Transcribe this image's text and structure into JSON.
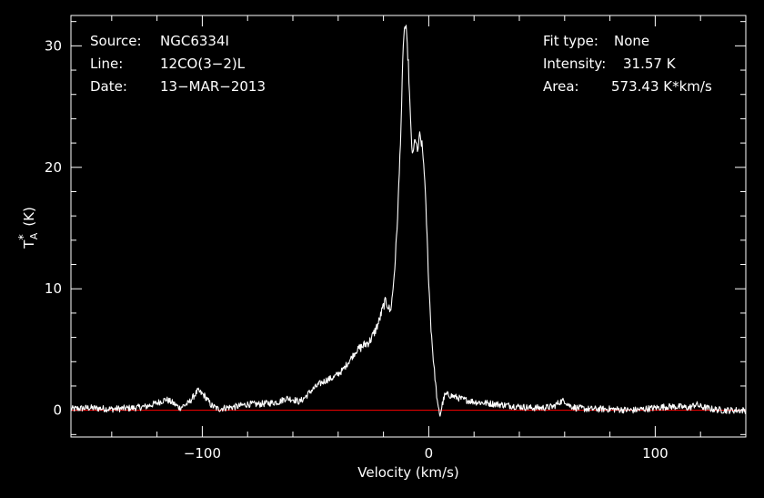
{
  "header": {
    "source_label": "Source:",
    "source_value": "NGC6334I",
    "line_label": "Line:",
    "line_value": "12CO(3−2)L",
    "date_label": "Date:",
    "date_value": "13−MAR−2013",
    "fit_label": "Fit type:",
    "fit_value": "None",
    "intensity_label": "Intensity:",
    "intensity_value": "31.57 K",
    "area_label": "Area:",
    "area_value": "573.43 K*km/s"
  },
  "colors": {
    "background": "#000000",
    "spectrum": "#ffffff",
    "baseline": "#ff0000",
    "axes": "#ffffff"
  },
  "chart_data": {
    "type": "line",
    "title": "",
    "xlabel": "Velocity (km/s)",
    "ylabel": "T*A (K)",
    "ylabel_parts": {
      "main": "T",
      "sup": "*",
      "sub": "A",
      "unit": "(K)"
    },
    "xlim": [
      -158,
      140
    ],
    "ylim": [
      -2.2,
      32.5
    ],
    "xticks": [
      -100,
      0,
      100
    ],
    "xtick_labels": [
      "−100",
      "0",
      "100"
    ],
    "yticks": [
      0,
      10,
      20,
      30
    ],
    "ytick_labels": [
      "0",
      "10",
      "20",
      "30"
    ],
    "grid": false,
    "legend": "none",
    "baseline_y": 0,
    "series": [
      {
        "x": [
          -158,
          -150,
          -140,
          -130,
          -125,
          -120,
          -116,
          -113,
          -110,
          -106,
          -102,
          -99,
          -96,
          -93,
          -90,
          -85,
          -80,
          -75,
          -70,
          -66,
          -63,
          -60,
          -57,
          -55,
          -52,
          -48,
          -45,
          -42,
          -38,
          -35,
          -32,
          -29,
          -26,
          -24,
          -22,
          -20,
          -19,
          -18,
          -17,
          -16,
          -15,
          -14,
          -13,
          -12,
          -11.5,
          -11,
          -10.5,
          -10,
          -9,
          -8,
          -7.5,
          -7,
          -6,
          -5,
          -4,
          -3,
          -2,
          -1,
          0,
          1,
          2,
          3,
          4,
          5,
          6,
          7,
          8,
          10,
          15,
          20,
          30,
          40,
          45,
          50,
          55,
          58,
          60,
          62,
          65,
          70,
          80,
          90,
          100,
          105,
          110,
          115,
          118,
          120,
          125,
          130,
          135,
          140
        ],
        "y": [
          0.1,
          0.2,
          0.1,
          0.2,
          0.3,
          0.6,
          0.9,
          0.6,
          0.2,
          0.6,
          1.6,
          1.2,
          0.4,
          0.1,
          0.2,
          0.3,
          0.5,
          0.5,
          0.6,
          0.7,
          1.0,
          0.9,
          0.7,
          1.0,
          1.6,
          2.2,
          2.5,
          2.7,
          3.3,
          4.1,
          4.9,
          5.3,
          5.7,
          6.4,
          7.3,
          8.6,
          9.0,
          8.6,
          8.1,
          9.5,
          11.8,
          15.0,
          19.5,
          25.0,
          28.5,
          31.0,
          31.6,
          31.3,
          28.5,
          23.5,
          21.8,
          20.9,
          22.5,
          21.2,
          22.6,
          21.8,
          19.8,
          15.5,
          10.5,
          6.8,
          4.2,
          2.2,
          0.3,
          -0.4,
          0.5,
          1.2,
          1.3,
          1.2,
          0.9,
          0.7,
          0.5,
          0.3,
          0.2,
          0.2,
          0.3,
          0.7,
          0.8,
          0.4,
          0.2,
          0.1,
          0.1,
          0.0,
          0.2,
          0.3,
          0.3,
          0.2,
          0.5,
          0.3,
          0.1,
          0.0,
          0.0,
          0.0
        ]
      }
    ]
  }
}
